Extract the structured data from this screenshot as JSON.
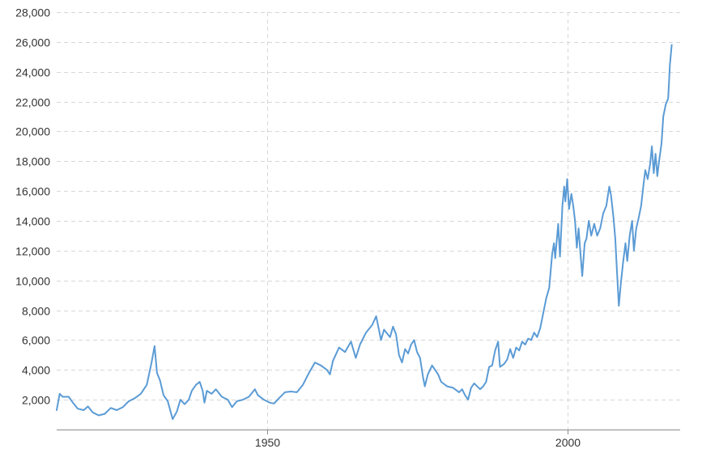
{
  "chart_data": {
    "type": "line",
    "title": "",
    "xlabel": "",
    "ylabel": "",
    "line_color": "#5b9bd5",
    "grid": true,
    "xlim": [
      1915,
      2018.8
    ],
    "ylim": [
      0,
      28000
    ],
    "y_ticks": [
      2000,
      4000,
      6000,
      8000,
      10000,
      12000,
      14000,
      16000,
      18000,
      20000,
      22000,
      24000,
      26000,
      28000
    ],
    "y_tick_labels": [
      "2,000",
      "4,000",
      "6,000",
      "8,000",
      "10,000",
      "12,000",
      "14,000",
      "16,000",
      "18,000",
      "20,000",
      "22,000",
      "24,000",
      "26,000",
      "28,000"
    ],
    "x_ticks": [
      1950,
      2000
    ],
    "x_tick_labels": [
      "1950",
      "2000"
    ],
    "series": [
      {
        "points": [
          [
            1915.0,
            1300
          ],
          [
            1915.5,
            2400
          ],
          [
            1916.0,
            2200
          ],
          [
            1917.0,
            2200
          ],
          [
            1917.8,
            1750
          ],
          [
            1918.5,
            1400
          ],
          [
            1919.5,
            1300
          ],
          [
            1920.2,
            1550
          ],
          [
            1921.0,
            1150
          ],
          [
            1922.0,
            950
          ],
          [
            1923.0,
            1050
          ],
          [
            1924.0,
            1450
          ],
          [
            1925.0,
            1300
          ],
          [
            1926.0,
            1500
          ],
          [
            1927.0,
            1900
          ],
          [
            1928.0,
            2100
          ],
          [
            1929.0,
            2400
          ],
          [
            1930.0,
            3000
          ],
          [
            1930.8,
            4500
          ],
          [
            1931.3,
            5600
          ],
          [
            1931.7,
            3800
          ],
          [
            1932.2,
            3300
          ],
          [
            1932.8,
            2300
          ],
          [
            1933.5,
            1900
          ],
          [
            1934.3,
            700
          ],
          [
            1935.0,
            1200
          ],
          [
            1935.6,
            2000
          ],
          [
            1936.3,
            1700
          ],
          [
            1937.0,
            2000
          ],
          [
            1937.5,
            2600
          ],
          [
            1938.2,
            3000
          ],
          [
            1938.8,
            3200
          ],
          [
            1939.3,
            2600
          ],
          [
            1939.6,
            1800
          ],
          [
            1940.0,
            2600
          ],
          [
            1940.8,
            2400
          ],
          [
            1941.5,
            2700
          ],
          [
            1942.5,
            2200
          ],
          [
            1943.5,
            2000
          ],
          [
            1944.2,
            1500
          ],
          [
            1945.0,
            1900
          ],
          [
            1946.0,
            2000
          ],
          [
            1947.0,
            2200
          ],
          [
            1948.0,
            2700
          ],
          [
            1948.5,
            2300
          ],
          [
            1949.5,
            2000
          ],
          [
            1950.5,
            1800
          ],
          [
            1951.2,
            1750
          ],
          [
            1952.0,
            2100
          ],
          [
            1953.0,
            2500
          ],
          [
            1954.0,
            2550
          ],
          [
            1955.0,
            2500
          ],
          [
            1956.0,
            3000
          ],
          [
            1957.0,
            3800
          ],
          [
            1958.0,
            4500
          ],
          [
            1959.0,
            4300
          ],
          [
            1960.0,
            4000
          ],
          [
            1960.5,
            3700
          ],
          [
            1961.0,
            4600
          ],
          [
            1962.0,
            5500
          ],
          [
            1963.0,
            5200
          ],
          [
            1964.0,
            5900
          ],
          [
            1964.8,
            4800
          ],
          [
            1965.5,
            5700
          ],
          [
            1966.5,
            6500
          ],
          [
            1967.5,
            7000
          ],
          [
            1968.2,
            7600
          ],
          [
            1968.6,
            6800
          ],
          [
            1969.0,
            6000
          ],
          [
            1969.5,
            6700
          ],
          [
            1970.5,
            6200
          ],
          [
            1971.0,
            6900
          ],
          [
            1971.5,
            6400
          ],
          [
            1972.0,
            5000
          ],
          [
            1972.5,
            4500
          ],
          [
            1973.0,
            5400
          ],
          [
            1973.5,
            5100
          ],
          [
            1974.0,
            5700
          ],
          [
            1974.5,
            6000
          ],
          [
            1975.0,
            5200
          ],
          [
            1975.5,
            4800
          ],
          [
            1976.0,
            3500
          ],
          [
            1976.3,
            2900
          ],
          [
            1976.8,
            3700
          ],
          [
            1977.5,
            4300
          ],
          [
            1978.5,
            3700
          ],
          [
            1979.0,
            3200
          ],
          [
            1980.0,
            2900
          ],
          [
            1981.0,
            2800
          ],
          [
            1982.0,
            2500
          ],
          [
            1982.5,
            2700
          ],
          [
            1983.0,
            2300
          ],
          [
            1983.5,
            2000
          ],
          [
            1984.0,
            2800
          ],
          [
            1984.5,
            3100
          ],
          [
            1985.5,
            2700
          ],
          [
            1986.0,
            2900
          ],
          [
            1986.5,
            3200
          ],
          [
            1987.0,
            4200
          ],
          [
            1987.5,
            4300
          ],
          [
            1988.0,
            5300
          ],
          [
            1988.5,
            5900
          ],
          [
            1988.8,
            4200
          ],
          [
            1989.5,
            4400
          ],
          [
            1990.0,
            4700
          ],
          [
            1990.5,
            5400
          ],
          [
            1991.0,
            4800
          ],
          [
            1991.5,
            5500
          ],
          [
            1992.0,
            5300
          ],
          [
            1992.5,
            5900
          ],
          [
            1993.0,
            5700
          ],
          [
            1993.5,
            6100
          ],
          [
            1994.0,
            6000
          ],
          [
            1994.5,
            6500
          ],
          [
            1995.0,
            6200
          ],
          [
            1995.5,
            6800
          ],
          [
            1996.0,
            7800
          ],
          [
            1996.5,
            8800
          ],
          [
            1997.0,
            9500
          ],
          [
            1997.5,
            11800
          ],
          [
            1997.8,
            12500
          ],
          [
            1998.0,
            11500
          ],
          [
            1998.5,
            13800
          ],
          [
            1998.8,
            11600
          ],
          [
            1999.2,
            15000
          ],
          [
            1999.5,
            16300
          ],
          [
            1999.7,
            15300
          ],
          [
            2000.0,
            16800
          ],
          [
            2000.3,
            14800
          ],
          [
            2000.7,
            15800
          ],
          [
            2001.0,
            15000
          ],
          [
            2001.3,
            14000
          ],
          [
            2001.6,
            12200
          ],
          [
            2001.9,
            13500
          ],
          [
            2002.2,
            11800
          ],
          [
            2002.5,
            10300
          ],
          [
            2002.9,
            12500
          ],
          [
            2003.2,
            12800
          ],
          [
            2003.6,
            14000
          ],
          [
            2004.0,
            13000
          ],
          [
            2004.5,
            13800
          ],
          [
            2005.0,
            13000
          ],
          [
            2005.5,
            13500
          ],
          [
            2006.0,
            14500
          ],
          [
            2006.5,
            15000
          ],
          [
            2007.0,
            16300
          ],
          [
            2007.3,
            15700
          ],
          [
            2007.7,
            14200
          ],
          [
            2008.0,
            12800
          ],
          [
            2008.3,
            10500
          ],
          [
            2008.6,
            8300
          ],
          [
            2008.9,
            9700
          ],
          [
            2009.3,
            11200
          ],
          [
            2009.7,
            12500
          ],
          [
            2010.0,
            11300
          ],
          [
            2010.4,
            13000
          ],
          [
            2010.8,
            14000
          ],
          [
            2011.1,
            12000
          ],
          [
            2011.5,
            13500
          ],
          [
            2011.9,
            14200
          ],
          [
            2012.3,
            15000
          ],
          [
            2012.7,
            16400
          ],
          [
            2013.0,
            17400
          ],
          [
            2013.4,
            16800
          ],
          [
            2013.8,
            17800
          ],
          [
            2014.1,
            19000
          ],
          [
            2014.4,
            17200
          ],
          [
            2014.7,
            18500
          ],
          [
            2015.0,
            17000
          ],
          [
            2015.3,
            18000
          ],
          [
            2015.7,
            19200
          ],
          [
            2016.0,
            21000
          ],
          [
            2016.4,
            21800
          ],
          [
            2016.8,
            22200
          ],
          [
            2017.1,
            24500
          ],
          [
            2017.4,
            25800
          ]
        ]
      }
    ]
  }
}
